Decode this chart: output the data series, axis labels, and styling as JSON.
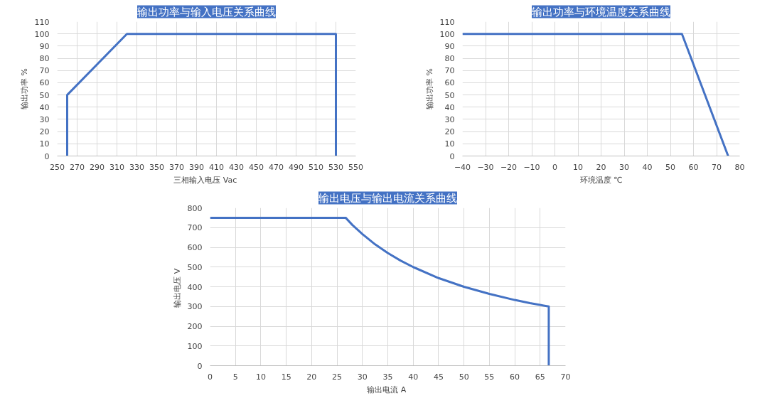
{
  "chart_data": [
    {
      "type": "line",
      "title": "输出功率与输入电压关系曲线",
      "xlabel": "三相输入电压  Vac",
      "ylabel": "输出功率 %",
      "grid": true,
      "line_style": "solid",
      "marker": "none",
      "xlim": [
        250,
        550
      ],
      "xticks": [
        250,
        270,
        290,
        310,
        330,
        350,
        370,
        390,
        410,
        430,
        450,
        470,
        490,
        510,
        530,
        550
      ],
      "ylim": [
        0,
        110
      ],
      "yticks": [
        0,
        10,
        20,
        30,
        40,
        50,
        60,
        70,
        80,
        90,
        100,
        110
      ],
      "series": [
        {
          "color": "#4472c4",
          "x": [
            260,
            260,
            320,
            530,
            530
          ],
          "values": [
            0,
            50,
            100,
            100,
            0
          ]
        }
      ]
    },
    {
      "type": "line",
      "title": "输出功率与环境温度关系曲线",
      "xlabel": "环境温度 ℃",
      "ylabel": "输出功率 %",
      "grid": true,
      "line_style": "solid",
      "marker": "none",
      "xlim": [
        -40,
        80
      ],
      "xticks": [
        -40,
        -30,
        -20,
        -10,
        0,
        10,
        20,
        30,
        40,
        50,
        60,
        70,
        80
      ],
      "ylim": [
        0,
        110
      ],
      "yticks": [
        0,
        10,
        20,
        30,
        40,
        50,
        60,
        70,
        80,
        90,
        100,
        110
      ],
      "series": [
        {
          "color": "#4472c4",
          "x": [
            -40,
            55,
            75
          ],
          "values": [
            100,
            100,
            0
          ]
        }
      ]
    },
    {
      "type": "line",
      "title": "输出电压与输出电流关系曲线",
      "xlabel": "输出电流  A",
      "ylabel": "输出电压  V",
      "grid": true,
      "line_style": "solid",
      "marker": "none",
      "xlim": [
        0,
        70
      ],
      "xticks": [
        0,
        5,
        10,
        15,
        20,
        25,
        30,
        35,
        40,
        45,
        50,
        55,
        60,
        65,
        70
      ],
      "ylim": [
        0,
        800
      ],
      "yticks": [
        0,
        100,
        200,
        300,
        400,
        500,
        600,
        700,
        800
      ],
      "series": [
        {
          "color": "#4472c4",
          "x": [
            0,
            26.7,
            28,
            30,
            32.5,
            35,
            37.5,
            40,
            45,
            50,
            55,
            60,
            63,
            66.7,
            66.7
          ],
          "values": [
            750,
            750,
            714,
            667,
            615,
            571,
            533,
            500,
            444,
            400,
            364,
            333,
            317,
            300,
            0
          ]
        }
      ]
    }
  ]
}
